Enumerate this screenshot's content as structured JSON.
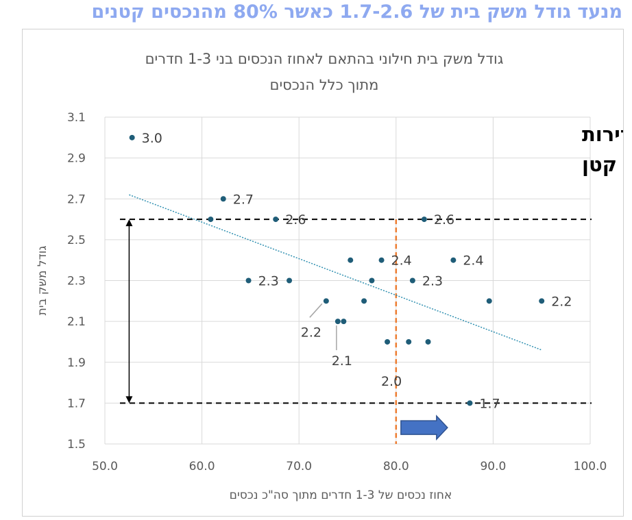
{
  "headline": "מנעד גודל משק בית של 1.7-2.6 כאשר 80% מהנכסים קטנים",
  "chart_data": {
    "type": "scatter",
    "title_lines": [
      "גודל משק בית חילוני בהתאם לאחוז הנכסים בני 1-3 חדרים",
      "מתוך כלל הנכסים"
    ],
    "xlabel": "אחוז נכסים של 1-3 חדרים מתוך סה\"כ נכסים",
    "ylabel": "גודל משק בית",
    "xlim": [
      50,
      100
    ],
    "ylim": [
      1.5,
      3.1
    ],
    "x_ticks": [
      "50.0",
      "60.0",
      "70.0",
      "80.0",
      "90.0",
      "100.0"
    ],
    "y_ticks": [
      "1.5",
      "1.7",
      "1.9",
      "2.1",
      "2.3",
      "2.5",
      "2.7",
      "2.9",
      "3.1"
    ],
    "grid": true,
    "point_color": "#1f5d78",
    "points": [
      {
        "x": 52.8,
        "y": 3.0
      },
      {
        "x": 60.9,
        "y": 2.6
      },
      {
        "x": 62.2,
        "y": 2.7
      },
      {
        "x": 64.8,
        "y": 2.3
      },
      {
        "x": 67.6,
        "y": 2.6
      },
      {
        "x": 69.0,
        "y": 2.3
      },
      {
        "x": 72.8,
        "y": 2.2
      },
      {
        "x": 74.0,
        "y": 2.1
      },
      {
        "x": 74.6,
        "y": 2.1
      },
      {
        "x": 75.3,
        "y": 2.4
      },
      {
        "x": 76.7,
        "y": 2.2
      },
      {
        "x": 77.5,
        "y": 2.3
      },
      {
        "x": 78.5,
        "y": 2.4
      },
      {
        "x": 79.1,
        "y": 2.0
      },
      {
        "x": 81.3,
        "y": 2.0
      },
      {
        "x": 81.7,
        "y": 2.3
      },
      {
        "x": 82.9,
        "y": 2.6
      },
      {
        "x": 83.3,
        "y": 2.0
      },
      {
        "x": 85.9,
        "y": 2.4
      },
      {
        "x": 87.6,
        "y": 1.7
      },
      {
        "x": 89.6,
        "y": 2.2
      },
      {
        "x": 95.0,
        "y": 2.2
      }
    ],
    "data_labels": [
      {
        "text": "3.0",
        "x": 52.8,
        "y": 3.0,
        "pos": "right"
      },
      {
        "text": "2.7",
        "x": 62.2,
        "y": 2.7,
        "pos": "right"
      },
      {
        "text": "2.6",
        "x": 67.6,
        "y": 2.6,
        "pos": "right"
      },
      {
        "text": "2.3",
        "x": 64.8,
        "y": 2.3,
        "pos": "right"
      },
      {
        "text": "2.2",
        "x": 72.8,
        "y": 2.2,
        "pos": "below-left",
        "leader": true
      },
      {
        "text": "2.1",
        "x": 74.0,
        "y": 2.1,
        "pos": "below",
        "leader": true
      },
      {
        "text": "2.4",
        "x": 78.5,
        "y": 2.4,
        "pos": "right"
      },
      {
        "text": "2.0",
        "x": 79.1,
        "y": 2.0,
        "pos": "below"
      },
      {
        "text": "2.3",
        "x": 81.7,
        "y": 2.3,
        "pos": "right"
      },
      {
        "text": "2.6",
        "x": 82.9,
        "y": 2.6,
        "pos": "right"
      },
      {
        "text": "2.4",
        "x": 85.9,
        "y": 2.4,
        "pos": "right"
      },
      {
        "text": "1.7",
        "x": 87.6,
        "y": 1.7,
        "pos": "right"
      },
      {
        "text": "2.2",
        "x": 95.0,
        "y": 2.2,
        "pos": "right"
      }
    ],
    "trendline": {
      "x": [
        52.5,
        95.0
      ],
      "y": [
        2.72,
        1.96
      ],
      "color": "#2e8fb0",
      "style": "dotted"
    },
    "reference_lines": [
      {
        "axis": "y",
        "value": 2.6,
        "style": "dashed",
        "color": "#000000"
      },
      {
        "axis": "y",
        "value": 1.7,
        "style": "dashed",
        "color": "#000000"
      },
      {
        "axis": "x",
        "value": 80.0,
        "style": "dashed",
        "color": "#ed7d31"
      }
    ],
    "range_arrow": {
      "x": 52.5,
      "y_from": 2.6,
      "y_to": 1.7
    },
    "direction_arrow": {
      "x_from": 80.5,
      "x_to": 85.3,
      "y": 1.58,
      "color": "#4472c4"
    },
    "annotation_lines": [
      "ככל שיש יותר דירות",
      "קטנות, משק הבית קטן"
    ]
  }
}
